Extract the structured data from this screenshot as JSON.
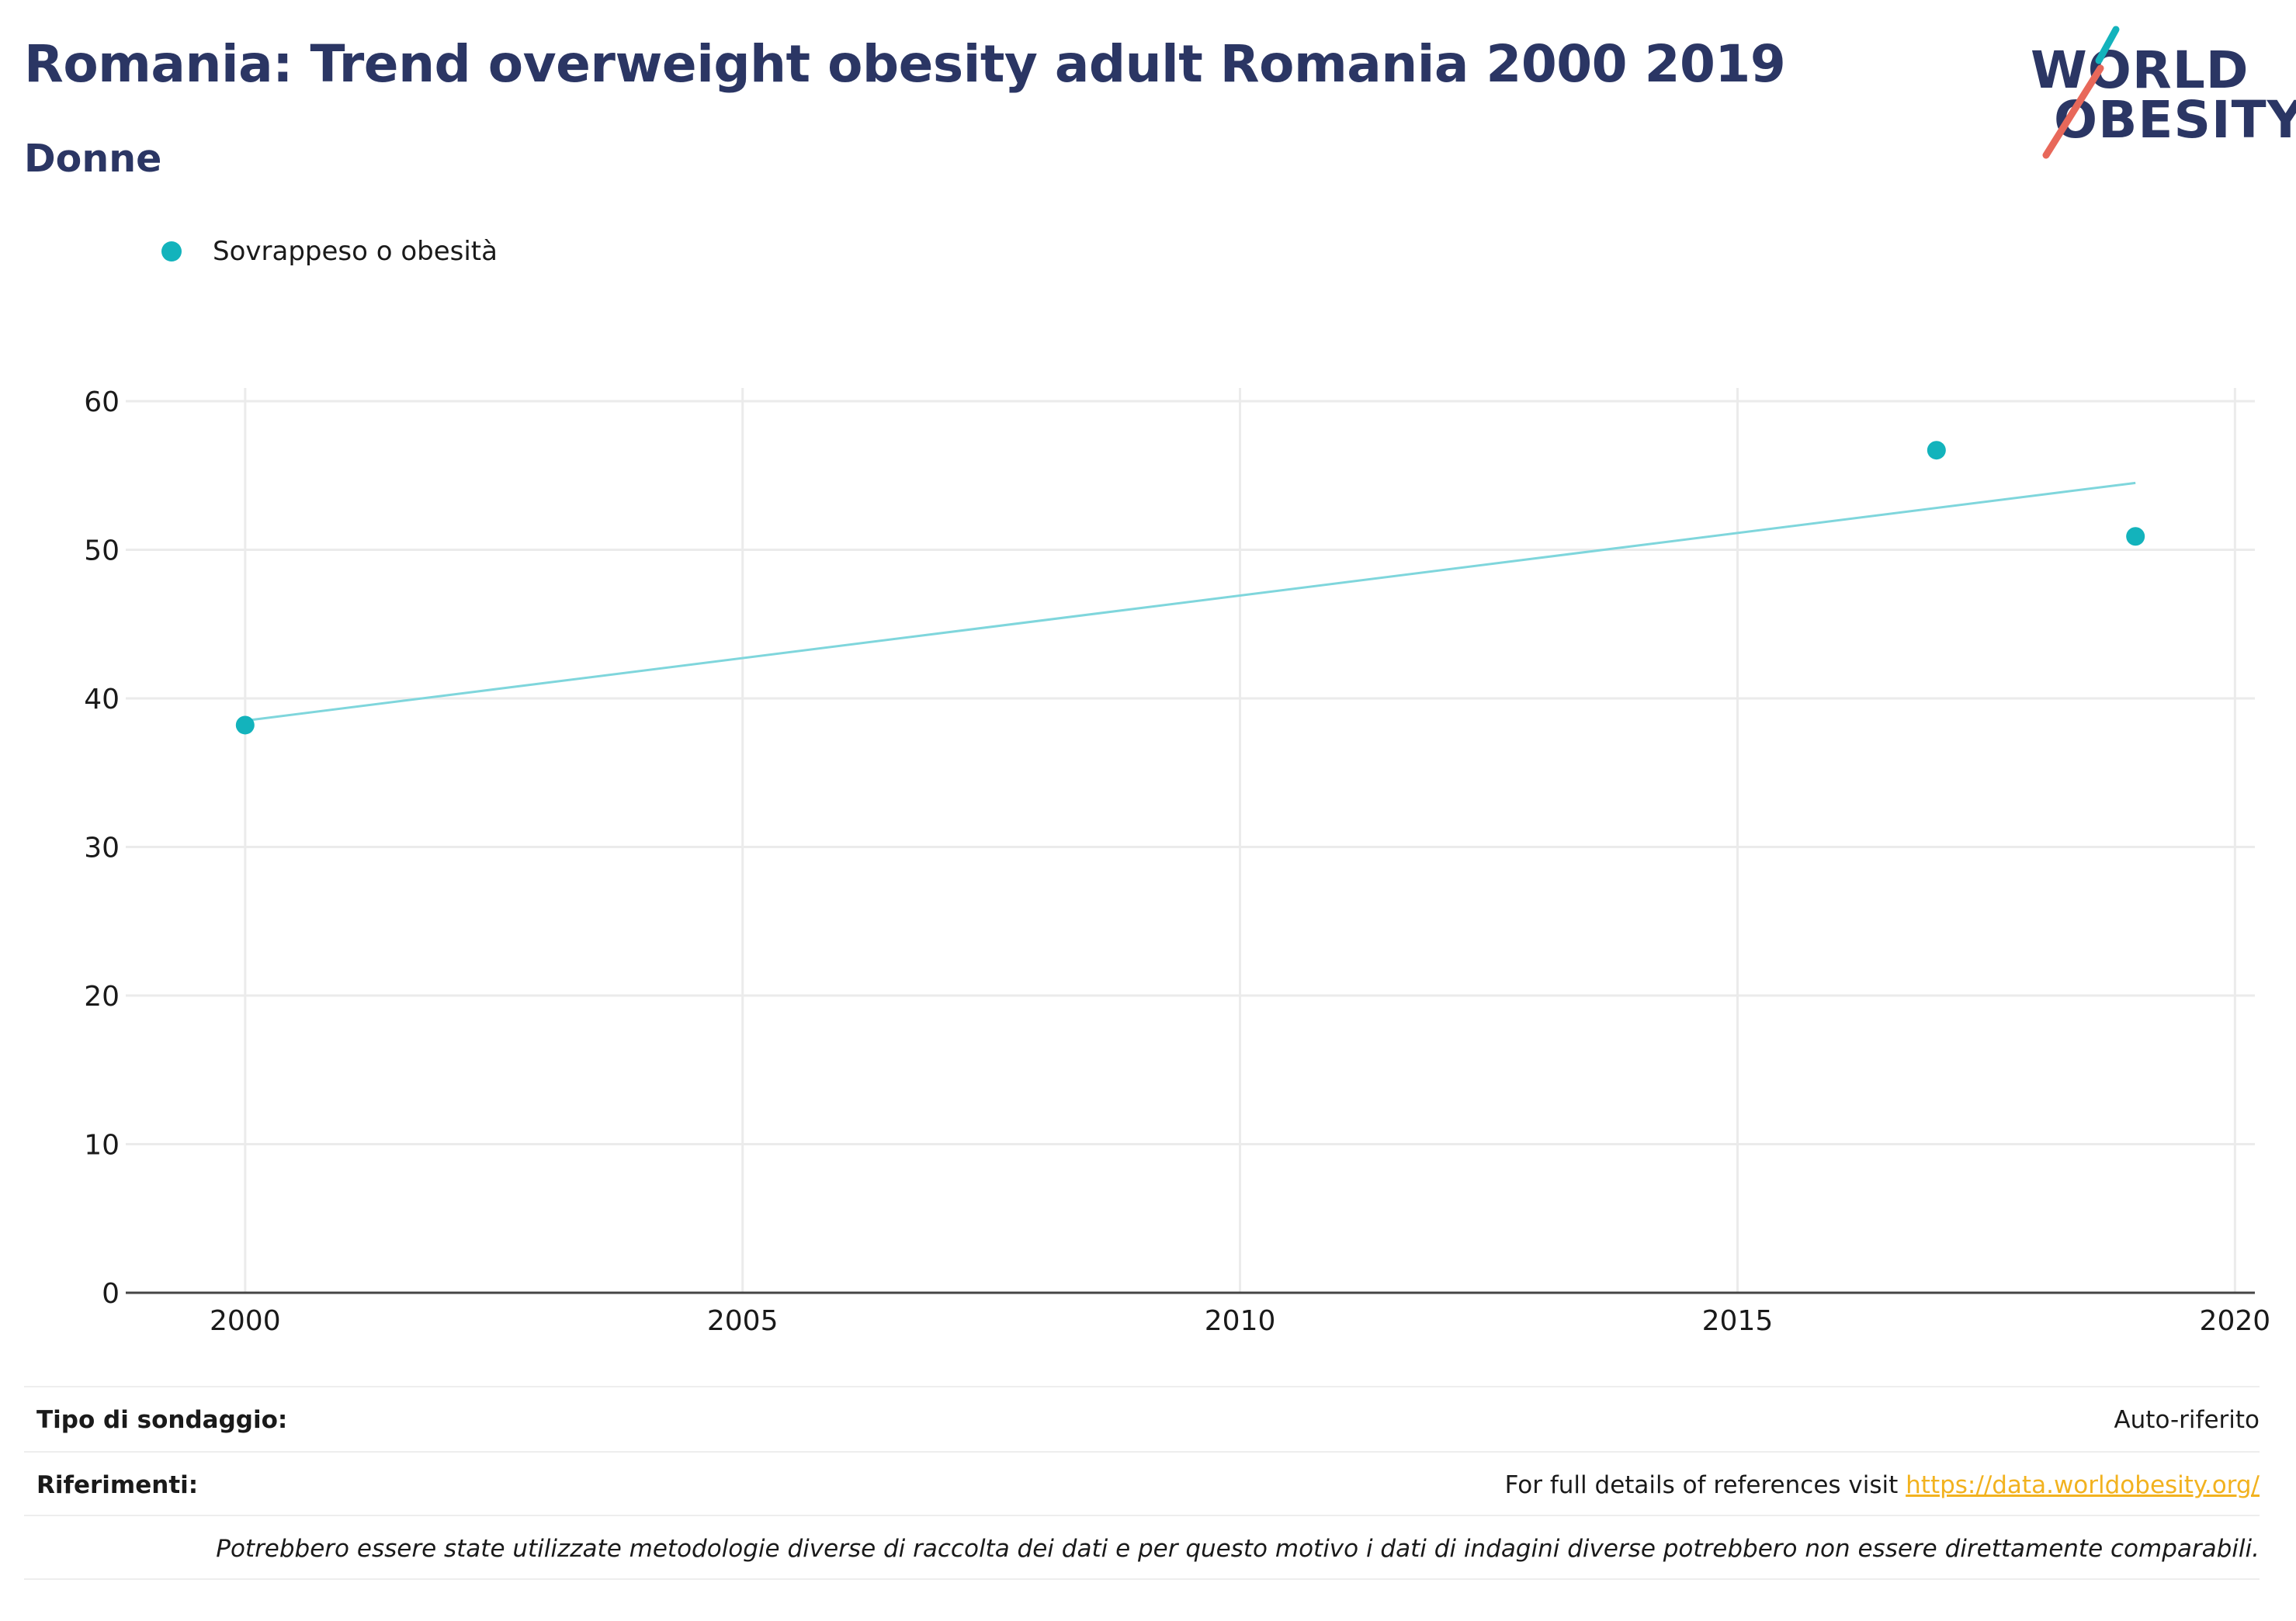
{
  "header": {
    "title": "Romania: Trend overweight obesity adult Romania 2000 2019",
    "subtitle": "Donne"
  },
  "logo": {
    "line1": "WORLD",
    "line2": "OBESITY",
    "colors": {
      "text": "#2b3664",
      "teal": "#13b3bc",
      "coral": "#e8685a"
    }
  },
  "legend": {
    "items": [
      {
        "label": "Sovrappeso o obesità",
        "color": "#13b3bc",
        "icon": "circle-marker-icon"
      }
    ]
  },
  "chart_data": {
    "type": "scatter",
    "series": [
      {
        "name": "Sovrappeso o obesità",
        "color": "#13b3bc",
        "points": [
          {
            "x": 2000,
            "y": 38.2
          },
          {
            "x": 2017,
            "y": 56.7
          },
          {
            "x": 2019,
            "y": 50.9
          }
        ]
      }
    ],
    "trendline": {
      "color": "#7fd6dc",
      "points": [
        {
          "x": 2000,
          "y": 38.5
        },
        {
          "x": 2019,
          "y": 54.5
        }
      ]
    },
    "x_ticks": [
      2000,
      2005,
      2010,
      2015,
      2020
    ],
    "y_ticks": [
      0,
      10,
      20,
      30,
      40,
      50,
      60
    ],
    "xlim": [
      1998.8,
      2020.2
    ],
    "ylim": [
      0,
      60
    ],
    "grid": true,
    "legend_position": "top-left"
  },
  "footer": {
    "survey_type_label": "Tipo di sondaggio:",
    "survey_type_value": "Auto-riferito",
    "references_label": "Riferimenti:",
    "references_text": "For full details of references visit ",
    "references_link": "https://data.worldobesity.org/",
    "disclaimer": "Potrebbero essere state utilizzate metodologie diverse di raccolta dei dati e per questo motivo i dati di indagini diverse potrebbero non essere direttamente comparabili.",
    "link_color": "#f2b21f"
  }
}
